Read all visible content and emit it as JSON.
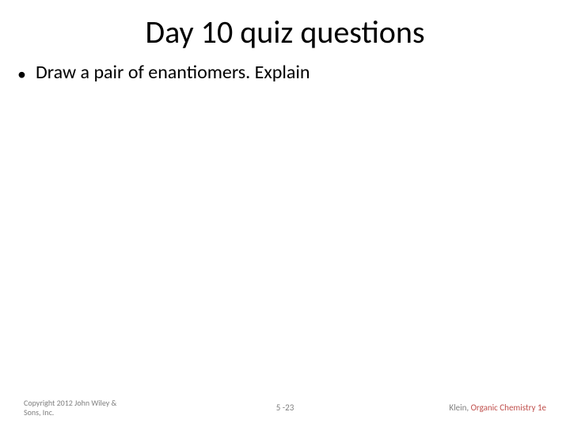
{
  "title": "Day 10 quiz questions",
  "bullets": [
    {
      "text": "Draw a pair of enantiomers.  Explain"
    }
  ],
  "footer": {
    "copyright_line1": "Copyright 2012 John Wiley &",
    "copyright_line2": "Sons, Inc.",
    "page": "5 -23",
    "author": "Klein, ",
    "book_title": "Organic Chemistry 1e"
  },
  "style": {
    "background_color": "#ffffff",
    "title_fontsize": 40,
    "title_color": "#000000",
    "body_fontsize": 24,
    "body_color": "#000000",
    "footer_fontsize": 10,
    "footer_color": "#808080",
    "accent_color": "#c0504d"
  }
}
